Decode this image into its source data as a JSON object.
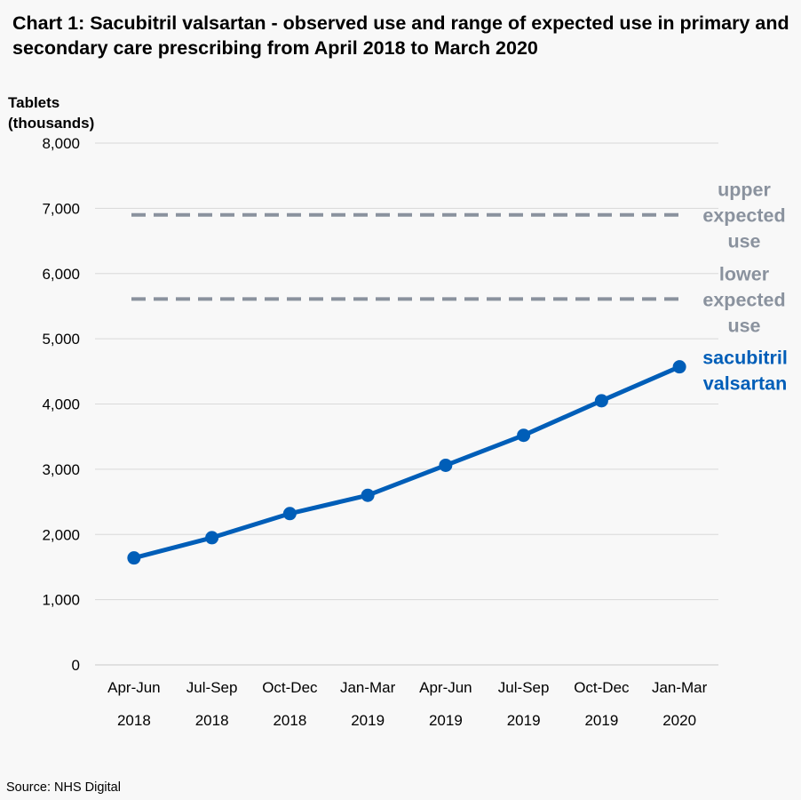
{
  "title": "Chart 1: Sacubitril valsartan - observed use and range of expected use in primary and secondary care prescribing from April 2018 to March 2020",
  "source": "Source: NHS Digital",
  "colors": {
    "series": "#005eb8",
    "reference": "#8a929e",
    "grid": "#d9d9d9"
  },
  "chart_data": {
    "type": "line",
    "ylabel": [
      "Tablets",
      "(thousands)"
    ],
    "xlabel": "",
    "ylim": [
      0,
      8000
    ],
    "yticks": [
      "0",
      "1,000",
      "2,000",
      "3,000",
      "4,000",
      "5,000",
      "6,000",
      "7,000",
      "8,000"
    ],
    "ytick_values": [
      0,
      1000,
      2000,
      3000,
      4000,
      5000,
      6000,
      7000,
      8000
    ],
    "grid": true,
    "legend": "none",
    "categories": [
      [
        "Apr-Jun",
        "2018"
      ],
      [
        "Jul-Sep",
        "2018"
      ],
      [
        "Oct-Dec",
        "2018"
      ],
      [
        "Jan-Mar",
        "2019"
      ],
      [
        "Apr-Jun",
        "2019"
      ],
      [
        "Jul-Sep",
        "2019"
      ],
      [
        "Oct-Dec",
        "2019"
      ],
      [
        "Jan-Mar",
        "2020"
      ]
    ],
    "series": [
      {
        "name": "sacubitril valsartan",
        "label_lines": [
          "sacubitril",
          "valsartan"
        ],
        "values": [
          1640,
          1950,
          2320,
          2600,
          3060,
          3520,
          4050,
          4570
        ]
      }
    ],
    "reference_lines": [
      {
        "name": "upper expected use",
        "label_lines": [
          "upper",
          "expected",
          "use"
        ],
        "value": 6900
      },
      {
        "name": "lower expected use",
        "label_lines": [
          "lower",
          "expected",
          "use"
        ],
        "value": 5610
      }
    ]
  }
}
